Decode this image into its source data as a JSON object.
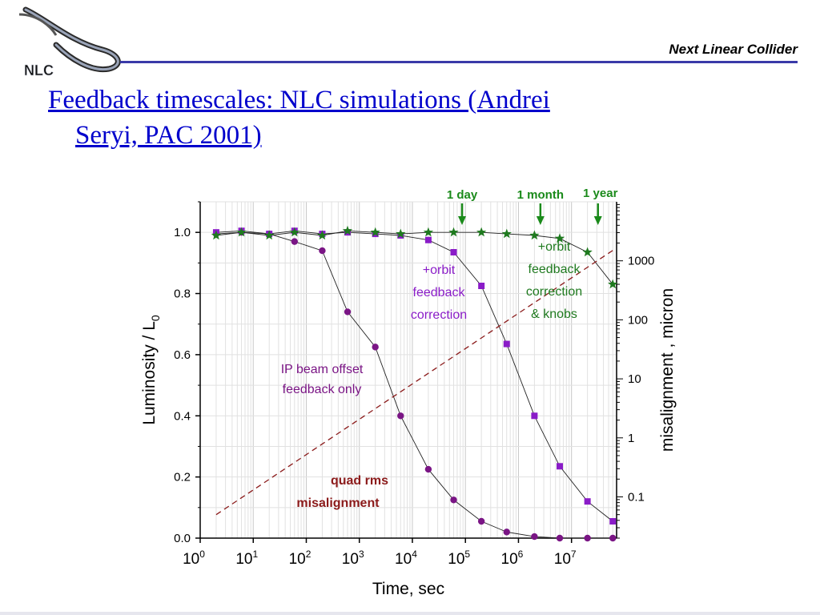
{
  "slide": {
    "brand": "Next Linear Collider",
    "title_line1": "Feedback timescales:   NLC simulations (Andrei",
    "title_line2": "Seryi, PAC 2001)",
    "logo_text": "NLC"
  },
  "chart_data": {
    "type": "line",
    "xlabel": "Time, sec",
    "ylabel": "Luminosity / L",
    "ylabel_sub": "0",
    "y2label": "misalignment , micron",
    "xscale": "log",
    "xlim_log10": [
      0,
      7.85
    ],
    "ylim": [
      0,
      1.1
    ],
    "y2scale": "log",
    "y2lim": [
      0.02,
      10000
    ],
    "grid": true,
    "xticks": [
      {
        "base": "10",
        "exp": "0"
      },
      {
        "base": "10",
        "exp": "1"
      },
      {
        "base": "10",
        "exp": "2"
      },
      {
        "base": "10",
        "exp": "3"
      },
      {
        "base": "10",
        "exp": "4"
      },
      {
        "base": "10",
        "exp": "5"
      },
      {
        "base": "10",
        "exp": "6"
      },
      {
        "base": "10",
        "exp": "7"
      }
    ],
    "yticks": [
      "0.0",
      "0.2",
      "0.4",
      "0.6",
      "0.8",
      "1.0"
    ],
    "y2ticks": [
      "0.1",
      "1",
      "10",
      "100",
      "1000"
    ],
    "series": [
      {
        "color": "#7a1585",
        "marker": "circle",
        "x": [
          2,
          6,
          20,
          60,
          200,
          600,
          2000,
          6000,
          20000,
          60000,
          200000,
          600000,
          2000000,
          6000000,
          20000000,
          60000000
        ],
        "y": [
          0.995,
          1.0,
          0.995,
          0.97,
          0.94,
          0.74,
          0.625,
          0.4,
          0.225,
          0.125,
          0.055,
          0.02,
          0.005,
          0.0,
          0.0,
          0.0
        ]
      },
      {
        "color": "#8a1cc8",
        "marker": "square",
        "x": [
          2,
          6,
          20,
          60,
          200,
          600,
          2000,
          6000,
          20000,
          60000,
          200000,
          600000,
          2000000,
          6000000,
          20000000,
          60000000
        ],
        "y": [
          1.0,
          1.005,
          0.995,
          1.005,
          0.995,
          1.0,
          0.995,
          0.99,
          0.975,
          0.935,
          0.825,
          0.635,
          0.4,
          0.235,
          0.12,
          0.055
        ]
      },
      {
        "color": "#1f7a1f",
        "marker": "star",
        "x": [
          2,
          6,
          20,
          60,
          200,
          600,
          2000,
          6000,
          20000,
          60000,
          200000,
          600000,
          2000000,
          6000000,
          20000000,
          60000000
        ],
        "y": [
          0.99,
          1.0,
          0.99,
          1.0,
          0.99,
          1.005,
          1.0,
          0.995,
          1.0,
          1.0,
          1.0,
          0.995,
          0.99,
          0.98,
          0.935,
          0.83
        ]
      },
      {
        "color": "#8b1a1a",
        "style": "dashed",
        "axis": "right",
        "x": [
          2,
          60000000
        ],
        "y": [
          0.05,
          1500
        ]
      }
    ],
    "annotations": [
      {
        "text": "IP beam offset",
        "color": "#7a1585"
      },
      {
        "text": "feedback only",
        "color": "#7a1585"
      },
      {
        "text": "+orbit",
        "color": "#8a1cc8"
      },
      {
        "text": "feedback",
        "color": "#8a1cc8"
      },
      {
        "text": "correction",
        "color": "#8a1cc8"
      },
      {
        "text": "+orbit",
        "color": "#1f7a1f"
      },
      {
        "text": "feedback",
        "color": "#1f7a1f"
      },
      {
        "text": "correction",
        "color": "#1f7a1f"
      },
      {
        "text": "& knobs",
        "color": "#1f7a1f"
      },
      {
        "text": "quad rms",
        "color": "#8b1a1a"
      },
      {
        "text": "misalignment",
        "color": "#8b1a1a"
      }
    ],
    "time_markers": [
      {
        "label": "1 day",
        "seconds": 86400
      },
      {
        "label": "1 month",
        "seconds": 2592000
      },
      {
        "label": "1 year",
        "seconds": 31536000
      }
    ]
  }
}
